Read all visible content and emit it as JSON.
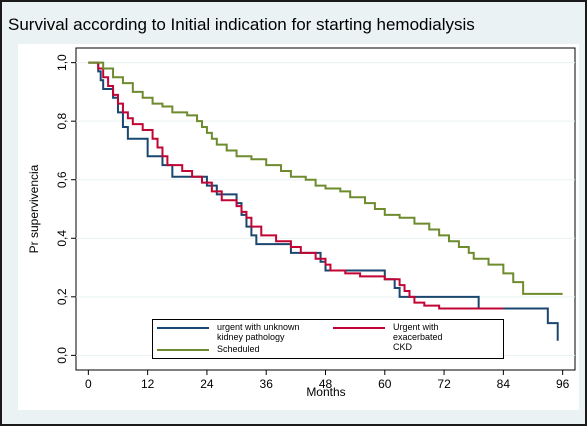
{
  "chart_data": {
    "type": "step",
    "title": "Survival according to Initial indication for starting hemodialysis",
    "x_label": "Months",
    "y_label": "Pr supervivencia",
    "xlim": [
      -2.5,
      98.5
    ],
    "ylim": [
      -0.05,
      1.05
    ],
    "xticks": [
      0,
      12,
      24,
      36,
      48,
      60,
      72,
      84,
      96
    ],
    "yticks": [
      {
        "value": 0,
        "label": "0,0"
      },
      {
        "value": 0.2,
        "label": "0,2"
      },
      {
        "value": 0.4,
        "label": "0,4"
      },
      {
        "value": 0.6,
        "label": "0,6"
      },
      {
        "value": 0.8,
        "label": "0,8"
      },
      {
        "value": 1,
        "label": "1,0"
      }
    ],
    "series": [
      {
        "name": "urgent  with unknown kidney pathology",
        "color": "#1a476f",
        "x": [
          0,
          2,
          2.5,
          3,
          5,
          6,
          7,
          8,
          12,
          15,
          17,
          24,
          26,
          30,
          31,
          32,
          33,
          34,
          41,
          47,
          48,
          60,
          62,
          63,
          79,
          93,
          95
        ],
        "values": [
          1.0,
          0.97,
          0.94,
          0.91,
          0.88,
          0.83,
          0.78,
          0.74,
          0.68,
          0.65,
          0.61,
          0.58,
          0.55,
          0.52,
          0.48,
          0.44,
          0.41,
          0.38,
          0.35,
          0.32,
          0.29,
          0.26,
          0.23,
          0.2,
          0.16,
          0.11,
          0.05
        ]
      },
      {
        "name": "Urgent with exacerbated CKD",
        "color": "#c10534",
        "x": [
          0,
          2,
          3,
          4,
          5,
          6,
          7,
          8,
          9,
          11,
          13,
          14,
          15,
          16,
          19,
          21,
          23,
          25,
          27,
          30,
          31,
          32,
          33,
          35,
          38,
          41,
          43,
          46,
          48,
          49,
          52,
          55,
          60,
          63,
          64,
          65,
          66,
          68,
          71,
          84
        ],
        "values": [
          1.0,
          0.98,
          0.95,
          0.92,
          0.89,
          0.86,
          0.83,
          0.81,
          0.79,
          0.77,
          0.74,
          0.71,
          0.68,
          0.65,
          0.63,
          0.61,
          0.59,
          0.56,
          0.53,
          0.51,
          0.49,
          0.47,
          0.44,
          0.41,
          0.39,
          0.37,
          0.35,
          0.33,
          0.31,
          0.29,
          0.28,
          0.27,
          0.26,
          0.24,
          0.22,
          0.2,
          0.18,
          0.17,
          0.16,
          0.16
        ]
      },
      {
        "name": "Scheduled",
        "color": "#6e8b2e",
        "x": [
          0,
          3,
          5,
          7,
          9,
          11,
          13,
          15,
          17,
          20,
          22,
          23,
          24,
          25,
          26,
          28,
          30,
          33,
          36,
          39,
          41,
          44,
          46,
          48,
          51,
          53,
          56,
          58,
          60,
          63,
          66,
          69,
          71,
          73,
          75,
          77,
          78,
          81,
          84,
          86,
          88,
          96
        ],
        "values": [
          1.0,
          0.98,
          0.95,
          0.93,
          0.9,
          0.88,
          0.86,
          0.85,
          0.83,
          0.82,
          0.8,
          0.78,
          0.76,
          0.74,
          0.72,
          0.7,
          0.68,
          0.67,
          0.65,
          0.63,
          0.61,
          0.6,
          0.58,
          0.57,
          0.56,
          0.54,
          0.52,
          0.5,
          0.48,
          0.47,
          0.45,
          0.43,
          0.41,
          0.39,
          0.37,
          0.35,
          0.33,
          0.31,
          0.28,
          0.25,
          0.21,
          0.21
        ]
      }
    ]
  }
}
